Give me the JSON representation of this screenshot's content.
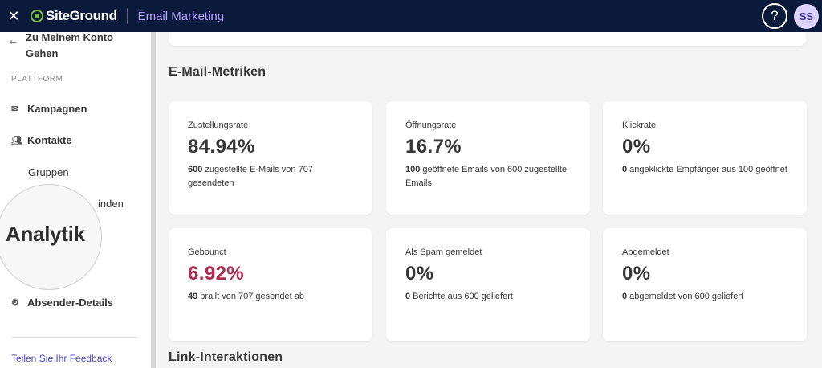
{
  "topbar": {
    "close_icon": "close-icon",
    "brand": "SiteGround",
    "product": "Email Marketing",
    "help_label": "?",
    "avatar_initials": "SS",
    "colors": {
      "bar": "#0b1a3b",
      "product": "#b9a3ff",
      "logo": "#7fbd3a"
    }
  },
  "sidebar": {
    "back_label": "Zu Meinem Konto Gehen",
    "section_label": "PLATTFORM",
    "items": [
      {
        "label": "Kampagnen",
        "icon": "mail-icon"
      },
      {
        "label": "Kontakte",
        "icon": "users-icon"
      }
    ],
    "sub_items": [
      {
        "label": "Gruppen"
      },
      {
        "label": "inden"
      }
    ],
    "zoom_label": "Analytik",
    "sender_item": {
      "label": "Absender-Details",
      "icon": "gear-icon"
    },
    "feedback_link": "Teilen Sie Ihr Feedback"
  },
  "main": {
    "metrics_title": "E-Mail-Metriken",
    "links_title": "Link-Interaktionen",
    "cards": [
      {
        "label": "Zustellungsrate",
        "value": "84.94%",
        "bold": "600",
        "desc": " zugestellte E-Mails von 707 gesendeten"
      },
      {
        "label": "Öffnungsrate",
        "value": "16.7%",
        "bold": "100",
        "desc": " geöffnete Emails von 600 zugestellte Emails"
      },
      {
        "label": "Klickrate",
        "value": "0%",
        "bold": "0",
        "desc": " angeklickte Empfänger aus 100 geöffnet"
      },
      {
        "label": "Gebounct",
        "value": "6.92%",
        "bold": "49",
        "desc": " prallt von 707 gesendet ab",
        "value_color": "#b3294e"
      },
      {
        "label": "Als Spam gemeldet",
        "value": "0%",
        "bold": "0",
        "desc": " Berichte aus 600 geliefert"
      },
      {
        "label": "Abgemeldet",
        "value": "0%",
        "bold": "0",
        "desc": " abgemeldet von 600 geliefert"
      }
    ]
  }
}
